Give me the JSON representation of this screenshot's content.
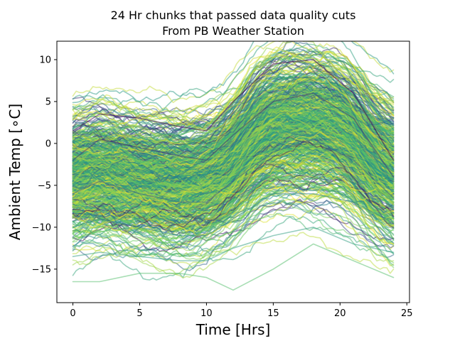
{
  "chart_data": {
    "type": "line",
    "title_line1": "24 Hr chunks that passed data quality cuts",
    "title_line2": "From PB Weather Station",
    "xlabel": "Time [Hrs]",
    "ylabel": "Ambient Temp [∘C]",
    "xlim": [
      -1.2,
      25.2
    ],
    "ylim": [
      -19.0,
      12.2
    ],
    "xticks": [
      0,
      5,
      10,
      15,
      20,
      25
    ],
    "yticks": [
      -15,
      -10,
      -5,
      0,
      5,
      10
    ],
    "grid": false,
    "legend": "none",
    "series_count_approx": 600,
    "colormap": [
      "#440154",
      "#3b528b",
      "#21918c",
      "#5ec962",
      "#fde725"
    ],
    "line_alpha": 0.5,
    "x_range_hours": [
      0,
      24
    ],
    "representative_series": [
      {
        "x": [
          0,
          2,
          5,
          8,
          10,
          12,
          15,
          18,
          21,
          24
        ],
        "y": [
          1.5,
          3.5,
          3.0,
          2.0,
          1.5,
          5.0,
          9.5,
          10.0,
          6.0,
          -2.0
        ]
      },
      {
        "x": [
          0,
          2,
          5,
          8,
          10,
          12,
          15,
          18,
          21,
          24
        ],
        "y": [
          -2.0,
          0.5,
          -0.5,
          -1.5,
          -2.0,
          1.0,
          5.0,
          6.0,
          3.0,
          -4.0
        ]
      },
      {
        "x": [
          0,
          2,
          5,
          8,
          10,
          12,
          15,
          18,
          21,
          24
        ],
        "y": [
          -6.0,
          -4.5,
          -6.0,
          -7.0,
          -7.0,
          -4.5,
          -1.0,
          0.5,
          -2.0,
          -6.5
        ]
      },
      {
        "x": [
          0,
          2,
          5,
          8,
          10,
          12,
          15,
          18,
          21,
          24
        ],
        "y": [
          -10.0,
          -9.0,
          -10.0,
          -11.0,
          -11.0,
          -9.0,
          -6.0,
          -6.0,
          -7.0,
          -9.5
        ]
      },
      {
        "x": [
          0,
          2,
          5,
          8,
          10,
          12,
          15,
          18,
          21,
          24
        ],
        "y": [
          -13.5,
          -13.0,
          -13.5,
          -14.0,
          -14.0,
          -12.5,
          -11.0,
          -10.0,
          -12.0,
          -13.0
        ]
      },
      {
        "x": [
          0,
          2,
          5,
          8,
          10,
          12,
          15,
          18,
          21,
          24
        ],
        "y": [
          -16.5,
          -16.5,
          -15.5,
          -15.5,
          -16.0,
          -17.5,
          -15.0,
          -12.0,
          -14.0,
          -16.0
        ]
      }
    ]
  }
}
